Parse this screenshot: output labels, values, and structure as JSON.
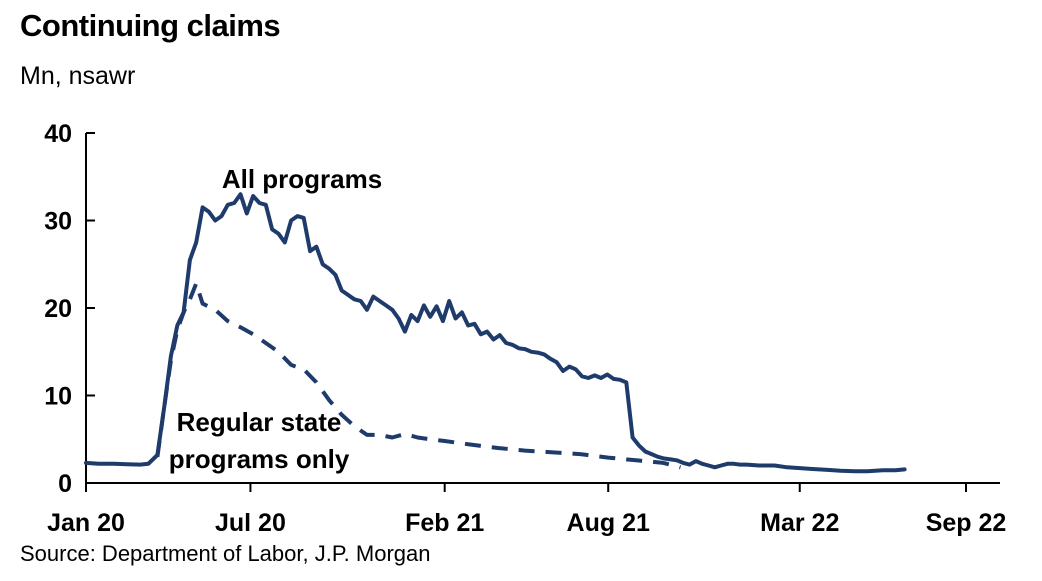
{
  "chart_data": {
    "type": "line",
    "title": "Continuing claims",
    "subtitle": "Mn, nsawr",
    "source": "Source: Department of Labor, J.P. Morgan",
    "ylim": [
      0,
      40
    ],
    "y_ticks": [
      0,
      10,
      20,
      30,
      40
    ],
    "x_range": [
      "2020-01",
      "2022-09"
    ],
    "x_ticks": [
      {
        "date": "2020-01",
        "label": "Jan 20"
      },
      {
        "date": "2020-07",
        "label": "Jul 20"
      },
      {
        "date": "2021-02",
        "label": "Feb 21"
      },
      {
        "date": "2021-08",
        "label": "Aug 21"
      },
      {
        "date": "2022-03",
        "label": "Mar 22"
      },
      {
        "date": "2022-09",
        "label": "Sep 22"
      }
    ],
    "grid": false,
    "colors": {
      "series": "#1f3b6b"
    },
    "annotations": [
      {
        "text": "All programs",
        "series": "All programs"
      },
      {
        "text": "Regular state",
        "series": "Regular state programs only"
      },
      {
        "text": "programs only",
        "series": "Regular state programs only"
      }
    ],
    "series": [
      {
        "name": "All programs",
        "style": "solid",
        "points": [
          [
            "2020-01-01",
            2.3
          ],
          [
            "2020-01-15",
            2.2
          ],
          [
            "2020-02-01",
            2.2
          ],
          [
            "2020-02-15",
            2.15
          ],
          [
            "2020-03-01",
            2.1
          ],
          [
            "2020-03-10",
            2.2
          ],
          [
            "2020-03-20",
            3.2
          ],
          [
            "2020-03-28",
            9.0
          ],
          [
            "2020-04-04",
            14.5
          ],
          [
            "2020-04-11",
            18.0
          ],
          [
            "2020-04-18",
            19.5
          ],
          [
            "2020-04-25",
            25.5
          ],
          [
            "2020-05-02",
            27.5
          ],
          [
            "2020-05-09",
            31.5
          ],
          [
            "2020-05-16",
            31.0
          ],
          [
            "2020-05-23",
            30.0
          ],
          [
            "2020-05-30",
            30.5
          ],
          [
            "2020-06-06",
            31.8
          ],
          [
            "2020-06-13",
            32.0
          ],
          [
            "2020-06-20",
            33.0
          ],
          [
            "2020-06-27",
            30.8
          ],
          [
            "2020-07-04",
            32.8
          ],
          [
            "2020-07-11",
            32.0
          ],
          [
            "2020-07-18",
            31.8
          ],
          [
            "2020-07-25",
            29.0
          ],
          [
            "2020-08-01",
            28.5
          ],
          [
            "2020-08-08",
            27.5
          ],
          [
            "2020-08-15",
            30.0
          ],
          [
            "2020-08-22",
            30.5
          ],
          [
            "2020-08-29",
            30.3
          ],
          [
            "2020-09-05",
            26.5
          ],
          [
            "2020-09-12",
            27.0
          ],
          [
            "2020-09-19",
            25.0
          ],
          [
            "2020-09-26",
            24.5
          ],
          [
            "2020-10-03",
            23.8
          ],
          [
            "2020-10-10",
            22.0
          ],
          [
            "2020-10-17",
            21.5
          ],
          [
            "2020-10-24",
            21.0
          ],
          [
            "2020-10-31",
            20.8
          ],
          [
            "2020-11-07",
            19.8
          ],
          [
            "2020-11-14",
            21.3
          ],
          [
            "2020-11-21",
            20.8
          ],
          [
            "2020-11-28",
            20.3
          ],
          [
            "2020-12-05",
            19.8
          ],
          [
            "2020-12-12",
            18.8
          ],
          [
            "2020-12-19",
            17.3
          ],
          [
            "2020-12-26",
            19.2
          ],
          [
            "2021-01-02",
            18.5
          ],
          [
            "2021-01-09",
            20.3
          ],
          [
            "2021-01-16",
            19.0
          ],
          [
            "2021-01-23",
            20.2
          ],
          [
            "2021-01-30",
            18.5
          ],
          [
            "2021-02-06",
            20.8
          ],
          [
            "2021-02-13",
            18.8
          ],
          [
            "2021-02-20",
            19.5
          ],
          [
            "2021-02-27",
            18.0
          ],
          [
            "2021-03-06",
            18.2
          ],
          [
            "2021-03-13",
            17.0
          ],
          [
            "2021-03-20",
            17.3
          ],
          [
            "2021-03-27",
            16.4
          ],
          [
            "2021-04-03",
            16.9
          ],
          [
            "2021-04-10",
            16.0
          ],
          [
            "2021-04-17",
            15.8
          ],
          [
            "2021-04-24",
            15.4
          ],
          [
            "2021-05-01",
            15.3
          ],
          [
            "2021-05-08",
            15.0
          ],
          [
            "2021-05-15",
            14.9
          ],
          [
            "2021-05-22",
            14.7
          ],
          [
            "2021-05-29",
            14.2
          ],
          [
            "2021-06-05",
            13.8
          ],
          [
            "2021-06-12",
            12.8
          ],
          [
            "2021-06-19",
            13.3
          ],
          [
            "2021-06-26",
            13.0
          ],
          [
            "2021-07-03",
            12.2
          ],
          [
            "2021-07-10",
            12.0
          ],
          [
            "2021-07-17",
            12.3
          ],
          [
            "2021-07-24",
            12.0
          ],
          [
            "2021-07-31",
            12.4
          ],
          [
            "2021-08-07",
            11.9
          ],
          [
            "2021-08-14",
            11.8
          ],
          [
            "2021-08-21",
            11.5
          ],
          [
            "2021-08-28",
            5.2
          ],
          [
            "2021-09-04",
            4.3
          ],
          [
            "2021-09-11",
            3.6
          ],
          [
            "2021-09-18",
            3.3
          ],
          [
            "2021-09-25",
            3.0
          ],
          [
            "2021-10-02",
            2.8
          ],
          [
            "2021-10-09",
            2.7
          ],
          [
            "2021-10-16",
            2.6
          ],
          [
            "2021-10-23",
            2.3
          ],
          [
            "2021-10-30",
            2.1
          ],
          [
            "2021-11-06",
            2.5
          ],
          [
            "2021-11-13",
            2.2
          ],
          [
            "2021-11-20",
            2.0
          ],
          [
            "2021-11-27",
            1.8
          ],
          [
            "2021-12-04",
            2.0
          ],
          [
            "2021-12-11",
            2.2
          ],
          [
            "2021-12-18",
            2.2
          ],
          [
            "2021-12-25",
            2.1
          ],
          [
            "2022-01-01",
            2.1
          ],
          [
            "2022-01-15",
            2.0
          ],
          [
            "2022-02-01",
            2.0
          ],
          [
            "2022-02-15",
            1.8
          ],
          [
            "2022-03-01",
            1.7
          ],
          [
            "2022-03-15",
            1.6
          ],
          [
            "2022-04-01",
            1.5
          ],
          [
            "2022-04-15",
            1.4
          ],
          [
            "2022-05-01",
            1.35
          ],
          [
            "2022-05-15",
            1.35
          ],
          [
            "2022-06-01",
            1.45
          ],
          [
            "2022-06-15",
            1.45
          ],
          [
            "2022-06-25",
            1.55
          ]
        ]
      },
      {
        "name": "Regular state programs only",
        "style": "dashed",
        "points": [
          [
            "2020-03-20",
            3.0
          ],
          [
            "2020-03-28",
            9.0
          ],
          [
            "2020-04-04",
            14.0
          ],
          [
            "2020-04-11",
            17.5
          ],
          [
            "2020-04-18",
            19.5
          ],
          [
            "2020-04-25",
            21.0
          ],
          [
            "2020-05-02",
            22.8
          ],
          [
            "2020-05-09",
            20.5
          ],
          [
            "2020-05-23",
            19.8
          ],
          [
            "2020-06-06",
            18.5
          ],
          [
            "2020-06-20",
            17.8
          ],
          [
            "2020-07-04",
            17.0
          ],
          [
            "2020-07-18",
            16.0
          ],
          [
            "2020-08-01",
            15.0
          ],
          [
            "2020-08-15",
            13.5
          ],
          [
            "2020-08-29",
            13.0
          ],
          [
            "2020-09-12",
            11.5
          ],
          [
            "2020-09-26",
            9.5
          ],
          [
            "2020-10-10",
            7.8
          ],
          [
            "2020-10-24",
            6.5
          ],
          [
            "2020-11-07",
            5.5
          ],
          [
            "2020-11-21",
            5.5
          ],
          [
            "2020-12-05",
            5.2
          ],
          [
            "2020-12-19",
            5.6
          ],
          [
            "2021-01-02",
            5.2
          ],
          [
            "2021-01-16",
            5.0
          ],
          [
            "2021-02-01",
            4.8
          ],
          [
            "2021-03-01",
            4.4
          ],
          [
            "2021-04-01",
            4.0
          ],
          [
            "2021-05-01",
            3.7
          ],
          [
            "2021-06-01",
            3.5
          ],
          [
            "2021-07-01",
            3.3
          ],
          [
            "2021-08-01",
            2.9
          ],
          [
            "2021-09-01",
            2.6
          ],
          [
            "2021-10-01",
            2.3
          ],
          [
            "2021-10-20",
            1.8
          ]
        ]
      }
    ]
  }
}
